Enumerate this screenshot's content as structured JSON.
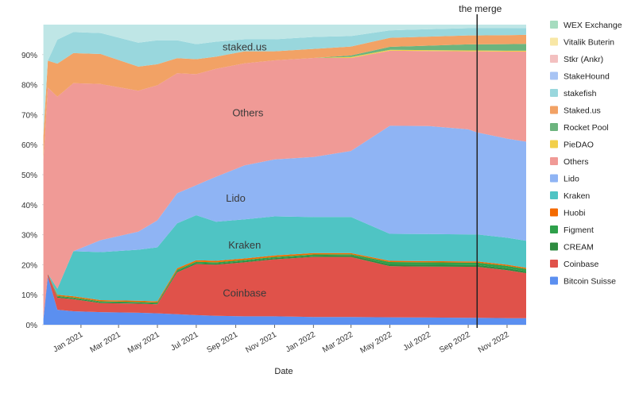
{
  "chart_data": {
    "type": "area",
    "stacked": true,
    "xlabel": "Date",
    "ylabel": "",
    "ylim": [
      0,
      100
    ],
    "y_tick_format": "{v}%",
    "y_ticks": [
      0,
      10,
      20,
      30,
      40,
      50,
      60,
      70,
      80,
      90
    ],
    "grid": true,
    "legend_position": "right",
    "x_tick_labels": [
      {
        "date": "2021-01-01",
        "label": "Jan 2021"
      },
      {
        "date": "2021-03-01",
        "label": "Mar 2021"
      },
      {
        "date": "2021-05-01",
        "label": "May 2021"
      },
      {
        "date": "2021-07-01",
        "label": "Jul 2021"
      },
      {
        "date": "2021-09-01",
        "label": "Sep 2021"
      },
      {
        "date": "2021-11-01",
        "label": "Nov 2021"
      },
      {
        "date": "2022-01-01",
        "label": "Jan 2022"
      },
      {
        "date": "2022-03-01",
        "label": "Mar 2022"
      },
      {
        "date": "2022-05-01",
        "label": "May 2022"
      },
      {
        "date": "2022-07-01",
        "label": "Jul 2022"
      },
      {
        "date": "2022-09-01",
        "label": "Sep 2022"
      },
      {
        "date": "2022-11-01",
        "label": "Nov 2022"
      }
    ],
    "x_range": [
      "2020-11-01",
      "2022-12-01"
    ],
    "x": [
      "2020-11-03",
      "2020-11-10",
      "2020-11-25",
      "2020-12-20",
      "2021-02-01",
      "2021-04-01",
      "2021-05-01",
      "2021-06-01",
      "2021-07-01",
      "2021-08-01",
      "2021-09-15",
      "2021-11-01",
      "2022-01-01",
      "2022-03-01",
      "2022-05-01",
      "2022-07-01",
      "2022-09-01",
      "2022-09-15",
      "2022-11-01",
      "2022-12-01"
    ],
    "series": [
      {
        "name": "Bitcoin Suisse",
        "color": "#5b8ff0",
        "values": [
          2,
          16,
          5,
          4.5,
          4.2,
          4.0,
          3.8,
          3.5,
          3.2,
          3.0,
          2.8,
          2.8,
          2.6,
          2.6,
          2.5,
          2.4,
          2.3,
          2.3,
          2.2,
          2.2
        ]
      },
      {
        "name": "Coinbase",
        "color": "#e0524a",
        "values": [
          0,
          1,
          4,
          4,
          3,
          3,
          3,
          14,
          17,
          17,
          18,
          19,
          20,
          20,
          17,
          17,
          17,
          17,
          16,
          15
        ]
      },
      {
        "name": "CREAM",
        "color": "#2e8b40",
        "values": [
          0,
          0,
          0.3,
          0.3,
          0.3,
          0.3,
          0.3,
          0.4,
          0.4,
          0.4,
          0.4,
          0.4,
          0.4,
          0.5,
          0.6,
          0.6,
          0.6,
          0.6,
          0.6,
          0.6
        ]
      },
      {
        "name": "Figment",
        "color": "#2ea04a",
        "values": [
          0,
          0,
          0.3,
          0.3,
          0.3,
          0.3,
          0.3,
          0.4,
          0.4,
          0.4,
          0.4,
          0.4,
          0.4,
          0.4,
          0.8,
          0.8,
          0.8,
          0.8,
          0.8,
          0.8
        ]
      },
      {
        "name": "Huobi",
        "color": "#f46a00",
        "values": [
          0,
          0,
          0.4,
          0.4,
          0.4,
          0.4,
          0.4,
          0.5,
          0.5,
          0.5,
          0.5,
          0.5,
          0.5,
          0.4,
          0.4,
          0.4,
          0.4,
          0.4,
          0.4,
          0.4
        ]
      },
      {
        "name": "Kraken",
        "color": "#4fc4c4",
        "values": [
          0,
          0,
          2,
          15,
          16,
          17,
          18,
          15,
          15,
          13,
          13,
          13,
          12,
          12,
          9,
          9,
          9,
          9,
          9,
          9
        ]
      },
      {
        "name": "Lido",
        "color": "#8fb4f4",
        "values": [
          0,
          0,
          0,
          0,
          4,
          6,
          9,
          10,
          10,
          15,
          18,
          19,
          20,
          22,
          36,
          36,
          35,
          34,
          33,
          33
        ]
      },
      {
        "name": "Others",
        "color": "#f09a96",
        "values": [
          53,
          62,
          64,
          56,
          52,
          47,
          45,
          40,
          37,
          36,
          34,
          33,
          33,
          31,
          25,
          25,
          26,
          27,
          29,
          30
        ]
      },
      {
        "name": "PieDAO",
        "color": "#f2cf4a",
        "values": [
          0,
          0,
          0,
          0,
          0,
          0,
          0,
          0,
          0,
          0,
          0,
          0,
          0,
          0.3,
          0.3,
          0.3,
          0.3,
          0.3,
          0.3,
          0.3
        ]
      },
      {
        "name": "Rocket Pool",
        "color": "#6cb47e",
        "values": [
          0,
          0,
          0,
          0,
          0,
          0,
          0,
          0,
          0,
          0,
          0,
          0,
          0,
          0.5,
          1.0,
          1.5,
          2.0,
          2.0,
          2.2,
          2.3
        ]
      },
      {
        "name": "Staked.us",
        "color": "#f2a265",
        "values": [
          8,
          9,
          11,
          10,
          10,
          8,
          7,
          5,
          5,
          4,
          4,
          3,
          3,
          3,
          3,
          3,
          3,
          3,
          3,
          3
        ]
      },
      {
        "name": "stakefish",
        "color": "#99d7dd",
        "values": [
          0,
          0,
          8,
          7,
          7,
          8,
          8,
          6,
          5,
          5,
          4,
          4,
          4,
          3.5,
          2.5,
          2.5,
          2.4,
          2.4,
          2.3,
          2.3
        ]
      },
      {
        "name": "StakeHound",
        "color": "#a8c4f4",
        "values": [
          0,
          0,
          0,
          0,
          0,
          0,
          0,
          0,
          0,
          0,
          0,
          0,
          0,
          0,
          0,
          0,
          0,
          0,
          0,
          0
        ]
      },
      {
        "name": "Stkr (Ankr)",
        "color": "#f3c0c0",
        "values": [
          0,
          0,
          0,
          0,
          0,
          0,
          0,
          0,
          0,
          0,
          0,
          0,
          0,
          0,
          0,
          0,
          0,
          0,
          0,
          0
        ]
      },
      {
        "name": "Vitalik Buterin",
        "color": "#f8e7a6",
        "values": [
          0,
          0,
          0,
          0,
          0,
          0,
          0,
          0,
          0,
          0,
          0,
          0,
          0,
          0,
          0,
          0,
          0,
          0,
          0,
          0
        ]
      },
      {
        "name": "WEX Exchange",
        "color": "#a6dcbf",
        "values": [
          0,
          0,
          0,
          0,
          0,
          0,
          0,
          0,
          0,
          0,
          0,
          0,
          0,
          0,
          0,
          0,
          0,
          0,
          0,
          0
        ]
      }
    ],
    "legend_order": [
      "WEX Exchange",
      "Vitalik Buterin",
      "Stkr (Ankr)",
      "StakeHound",
      "stakefish",
      "Staked.us",
      "Rocket Pool",
      "PieDAO",
      "Others",
      "Lido",
      "Kraken",
      "Huobi",
      "Figment",
      "CREAM",
      "Coinbase",
      "Bitcoin Suisse"
    ],
    "in_chart_labels": [
      {
        "text": "staked.us",
        "date": "2021-09-15",
        "y": 92.5
      },
      {
        "text": "Others",
        "date": "2021-09-20",
        "y": 70.5
      },
      {
        "text": "Lido",
        "date": "2021-09-01",
        "y": 42
      },
      {
        "text": "Kraken",
        "date": "2021-09-15",
        "y": 26.5
      },
      {
        "text": "Coinbase",
        "date": "2021-09-15",
        "y": 10.5
      }
    ],
    "annotations": [
      {
        "type": "vertical-line",
        "date": "2022-09-15",
        "label": "the merge"
      }
    ]
  }
}
